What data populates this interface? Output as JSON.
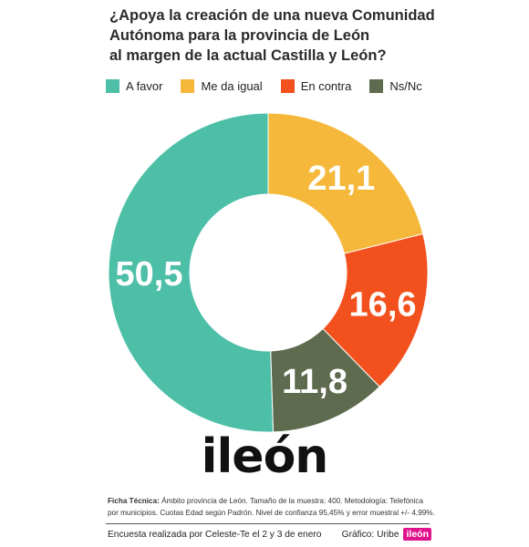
{
  "title_lines": [
    "¿Apoya la creación de una nueva Comunidad",
    "Autónoma para la provincia de León",
    "al margen de la actual Castilla y León?"
  ],
  "chart_data": {
    "type": "pie",
    "categories": [
      "A favor",
      "Me da igual",
      "En contra",
      "Ns/Nc"
    ],
    "values": [
      50.5,
      21.1,
      16.6,
      11.8
    ],
    "labels": [
      "50,5",
      "21,1",
      "16,6",
      "11,8"
    ],
    "colors": [
      "#4dbfa7",
      "#f5b83a",
      "#f2511d",
      "#5e6b4e"
    ],
    "legend_position": "top"
  },
  "logo_text": "ileón",
  "ficha": {
    "label": "Ficha Técnica:",
    "text": " Ámbito provincia de León. Tamaño de la muestra: 400. Metodología: Telefónica  por municipios. Cuotas Edad según Padrón. Nivel de confianza 95,45% y error muestral +/- 4,99%."
  },
  "footer": {
    "left": "Encuesta realizada por Celeste-Te el 2 y 3 de enero",
    "right": "Gráfico: Uribe",
    "badge": "ileón"
  }
}
